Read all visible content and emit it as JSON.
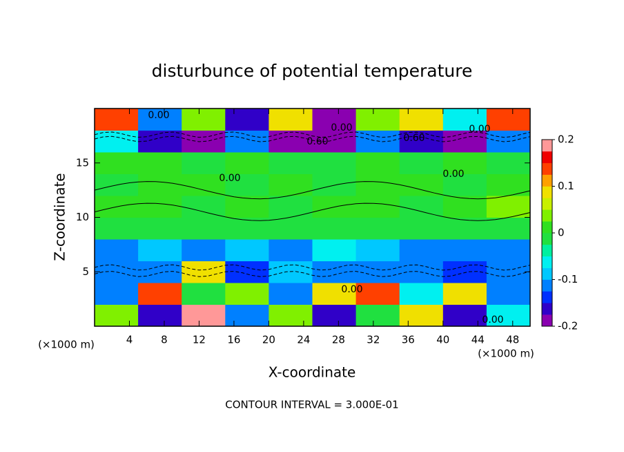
{
  "chart_data": {
    "type": "heatmap",
    "title": "disturbunce of potential temperature",
    "x_label": "X-coordinate",
    "y_label": "Z-coordinate",
    "x_unit_label": "(×1000 m)",
    "footer": "CONTOUR INTERVAL = 3.000E-01",
    "xlim": [
      0,
      50
    ],
    "ylim": [
      0,
      20
    ],
    "xticks": [
      4,
      8,
      12,
      16,
      20,
      24,
      28,
      32,
      36,
      40,
      44,
      48
    ],
    "yticks": [
      5,
      10,
      15
    ],
    "x_edges": [
      0,
      5,
      10,
      15,
      20,
      25,
      30,
      35,
      40,
      45,
      50
    ],
    "y_edges": [
      0,
      2,
      4,
      6,
      8,
      10,
      12,
      14,
      16,
      18,
      20
    ],
    "z": [
      [
        0.05,
        -0.15,
        0.2,
        -0.1,
        0.05,
        -0.15,
        0.0,
        0.1,
        -0.15,
        -0.05
      ],
      [
        -0.1,
        0.15,
        0.0,
        0.05,
        -0.1,
        0.1,
        0.15,
        -0.05,
        0.1,
        -0.1
      ],
      [
        -0.12,
        -0.1,
        0.1,
        -0.13,
        -0.08,
        -0.1,
        -0.12,
        -0.1,
        -0.13,
        -0.12
      ],
      [
        -0.1,
        -0.08,
        -0.1,
        -0.09,
        -0.1,
        -0.05,
        -0.09,
        -0.1,
        -0.1,
        -0.1
      ],
      [
        0.0,
        0.0,
        -0.02,
        0.0,
        0.0,
        0.0,
        0.0,
        0.0,
        0.0,
        0.0
      ],
      [
        0.01,
        0.02,
        0.0,
        0.02,
        0.0,
        0.01,
        0.02,
        0.0,
        0.01,
        0.03
      ],
      [
        0.0,
        0.01,
        0.02,
        0.0,
        0.01,
        0.0,
        0.01,
        0.02,
        0.0,
        0.01
      ],
      [
        0.02,
        0.01,
        0.0,
        0.01,
        0.0,
        0.0,
        0.01,
        0.0,
        0.01,
        0.0
      ],
      [
        -0.05,
        -0.15,
        -0.2,
        -0.1,
        -0.18,
        -0.2,
        -0.1,
        -0.15,
        -0.2,
        -0.1
      ],
      [
        0.15,
        -0.1,
        0.05,
        -0.15,
        0.1,
        -0.2,
        0.05,
        0.1,
        -0.05,
        0.15
      ]
    ],
    "colorbar": {
      "levels": [
        -0.2,
        -0.175,
        -0.15,
        -0.125,
        -0.1,
        -0.075,
        -0.05,
        -0.025,
        0,
        0.025,
        0.05,
        0.075,
        0.1,
        0.125,
        0.15,
        0.175,
        0.2
      ],
      "colors": [
        "#8a00b0",
        "#3000c8",
        "#0030ff",
        "#0080ff",
        "#00c8ff",
        "#00f0f0",
        "#00f0a0",
        "#20e040",
        "#30e020",
        "#80f000",
        "#c8f000",
        "#f0e000",
        "#ffa000",
        "#ff4000",
        "#f00000",
        "#ff9898"
      ],
      "ticks": [
        -0.2,
        -0.1,
        0,
        0.1,
        0.2
      ]
    },
    "contour_labels": [
      "0.00",
      "0.00",
      "0.60",
      "0.60",
      "0.00",
      "0.00",
      "0.00",
      "0.00",
      "0.00"
    ]
  }
}
